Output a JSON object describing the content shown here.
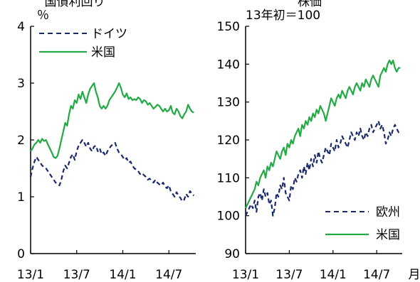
{
  "chart_data": [
    {
      "type": "line",
      "title": "国債利回り",
      "unit": "％",
      "ylim": [
        0,
        4
      ],
      "yticks": [
        "0",
        "1",
        "2",
        "3",
        "4"
      ],
      "xticks": [
        "13/1",
        "13/7",
        "14/1",
        "14/7"
      ],
      "xlim": [
        0,
        21.5
      ],
      "grid": false,
      "legend_position": "top-left",
      "series": [
        {
          "name": "ドイツ",
          "color": "#1b2a6b",
          "style": "dashed",
          "x": [
            0,
            0.25,
            0.5,
            0.75,
            1,
            1.25,
            1.5,
            1.75,
            2,
            2.25,
            2.5,
            2.75,
            3,
            3.25,
            3.5,
            3.75,
            4,
            4.25,
            4.5,
            4.75,
            5,
            5.25,
            5.5,
            5.75,
            6,
            6.25,
            6.5,
            6.75,
            7,
            7.25,
            7.5,
            7.75,
            8,
            8.25,
            8.5,
            8.75,
            9,
            9.25,
            9.5,
            9.75,
            10,
            10.25,
            10.5,
            10.75,
            11,
            11.25,
            11.5,
            11.75,
            12,
            12.25,
            12.5,
            12.75,
            13,
            13.25,
            13.5,
            13.75,
            14,
            14.25,
            14.5,
            14.75,
            15,
            15.25,
            15.5,
            15.75,
            16,
            16.25,
            16.5,
            16.75,
            17,
            17.25,
            17.5,
            17.75,
            18,
            18.25,
            18.5,
            18.75,
            19,
            19.25,
            19.5,
            19.75,
            20,
            20.25,
            20.5,
            20.75,
            21,
            21.25
          ],
          "values": [
            1.35,
            1.5,
            1.62,
            1.7,
            1.65,
            1.6,
            1.55,
            1.52,
            1.5,
            1.45,
            1.4,
            1.35,
            1.3,
            1.25,
            1.22,
            1.2,
            1.3,
            1.45,
            1.55,
            1.5,
            1.6,
            1.7,
            1.75,
            1.65,
            1.8,
            1.9,
            1.95,
            2.0,
            1.95,
            1.88,
            1.95,
            1.85,
            1.8,
            1.88,
            1.9,
            1.8,
            1.85,
            1.75,
            1.78,
            1.72,
            1.8,
            1.85,
            1.9,
            1.92,
            1.95,
            1.85,
            1.78,
            1.75,
            1.7,
            1.65,
            1.68,
            1.6,
            1.62,
            1.55,
            1.5,
            1.48,
            1.45,
            1.4,
            1.42,
            1.38,
            1.35,
            1.3,
            1.32,
            1.28,
            1.25,
            1.3,
            1.25,
            1.22,
            1.2,
            1.25,
            1.18,
            1.15,
            1.2,
            1.1,
            1.05,
            1.0,
            1.08,
            1.02,
            0.98,
            0.92,
            0.95,
            1.05,
            1.0,
            1.1,
            1.05,
            1.02
          ]
        },
        {
          "name": "米国",
          "color": "#22aa44",
          "style": "solid",
          "x": [
            0,
            0.25,
            0.5,
            0.75,
            1,
            1.25,
            1.5,
            1.75,
            2,
            2.25,
            2.5,
            2.75,
            3,
            3.25,
            3.5,
            3.75,
            4,
            4.25,
            4.5,
            4.75,
            5,
            5.25,
            5.5,
            5.75,
            6,
            6.25,
            6.5,
            6.75,
            7,
            7.25,
            7.5,
            7.75,
            8,
            8.25,
            8.5,
            8.75,
            9,
            9.25,
            9.5,
            9.75,
            10,
            10.25,
            10.5,
            10.75,
            11,
            11.25,
            11.5,
            11.75,
            12,
            12.25,
            12.5,
            12.75,
            13,
            13.25,
            13.5,
            13.75,
            14,
            14.25,
            14.5,
            14.75,
            15,
            15.25,
            15.5,
            15.75,
            16,
            16.25,
            16.5,
            16.75,
            17,
            17.25,
            17.5,
            17.75,
            18,
            18.25,
            18.5,
            18.75,
            19,
            19.25,
            19.5,
            19.75,
            20,
            20.25,
            20.5,
            20.75,
            21,
            21.25
          ],
          "values": [
            1.8,
            1.85,
            1.92,
            1.95,
            2.0,
            1.95,
            2.02,
            1.98,
            2.0,
            1.92,
            1.85,
            1.78,
            1.7,
            1.68,
            1.72,
            1.85,
            2.0,
            2.15,
            2.3,
            2.25,
            2.45,
            2.6,
            2.55,
            2.7,
            2.65,
            2.8,
            2.72,
            2.85,
            2.75,
            2.65,
            2.8,
            2.9,
            2.95,
            3.0,
            2.85,
            2.75,
            2.6,
            2.55,
            2.6,
            2.55,
            2.6,
            2.7,
            2.75,
            2.8,
            2.85,
            2.92,
            3.0,
            2.92,
            2.8,
            2.75,
            2.82,
            2.72,
            2.75,
            2.7,
            2.72,
            2.7,
            2.75,
            2.72,
            2.65,
            2.7,
            2.68,
            2.62,
            2.65,
            2.6,
            2.55,
            2.58,
            2.62,
            2.6,
            2.55,
            2.5,
            2.55,
            2.5,
            2.52,
            2.6,
            2.48,
            2.45,
            2.55,
            2.5,
            2.42,
            2.38,
            2.45,
            2.5,
            2.62,
            2.55,
            2.5,
            2.48
          ]
        }
      ]
    },
    {
      "type": "line",
      "title": "株価",
      "unit": "13年初＝100",
      "ylim": [
        90,
        150
      ],
      "yticks": [
        "90",
        "100",
        "110",
        "120",
        "130",
        "140",
        "150"
      ],
      "xticks": [
        "13/1",
        "13/7",
        "14/1",
        "14/7"
      ],
      "xlim": [
        0,
        21.5
      ],
      "x_axis_label": "月",
      "grid": false,
      "legend_position": "bottom-right",
      "series": [
        {
          "name": "欧州",
          "color": "#1b2a6b",
          "style": "dashed",
          "x": [
            0,
            0.25,
            0.5,
            0.75,
            1,
            1.25,
            1.5,
            1.75,
            2,
            2.25,
            2.5,
            2.75,
            3,
            3.25,
            3.5,
            3.75,
            4,
            4.25,
            4.5,
            4.75,
            5,
            5.25,
            5.5,
            5.75,
            6,
            6.25,
            6.5,
            6.75,
            7,
            7.25,
            7.5,
            7.75,
            8,
            8.25,
            8.5,
            8.75,
            9,
            9.25,
            9.5,
            9.75,
            10,
            10.25,
            10.5,
            10.75,
            11,
            11.25,
            11.5,
            11.75,
            12,
            12.25,
            12.5,
            12.75,
            13,
            13.25,
            13.5,
            13.75,
            14,
            14.25,
            14.5,
            14.75,
            15,
            15.25,
            15.5,
            15.75,
            16,
            16.25,
            16.5,
            16.75,
            17,
            17.25,
            17.5,
            17.75,
            18,
            18.25,
            18.5,
            18.75,
            19,
            19.25,
            19.5,
            19.75,
            20,
            20.25,
            20.5,
            20.75,
            21,
            21.25
          ],
          "values": [
            100,
            101,
            102,
            103,
            102,
            104,
            101,
            105,
            106,
            104,
            107,
            105,
            106,
            103,
            104,
            100,
            102,
            106,
            105,
            108,
            107,
            110,
            106,
            105,
            104,
            108,
            107,
            110,
            109,
            111,
            112,
            110,
            113,
            111,
            114,
            112,
            115,
            113,
            116,
            114,
            117,
            115,
            114,
            116,
            118,
            117,
            116,
            119,
            118,
            117,
            120,
            118,
            119,
            121,
            120,
            119,
            118,
            120,
            122,
            121,
            120,
            122,
            121,
            123,
            121,
            120,
            122,
            121,
            123,
            124,
            122,
            123,
            124,
            125,
            123,
            124,
            122,
            119,
            120,
            122,
            121,
            123,
            124,
            123,
            122,
            122
          ]
        },
        {
          "name": "米国",
          "color": "#22aa44",
          "style": "solid",
          "x": [
            0,
            0.25,
            0.5,
            0.75,
            1,
            1.25,
            1.5,
            1.75,
            2,
            2.25,
            2.5,
            2.75,
            3,
            3.25,
            3.5,
            3.75,
            4,
            4.25,
            4.5,
            4.75,
            5,
            5.25,
            5.5,
            5.75,
            6,
            6.25,
            6.5,
            6.75,
            7,
            7.25,
            7.5,
            7.75,
            8,
            8.25,
            8.5,
            8.75,
            9,
            9.25,
            9.5,
            9.75,
            10,
            10.25,
            10.5,
            10.75,
            11,
            11.25,
            11.5,
            11.75,
            12,
            12.25,
            12.5,
            12.75,
            13,
            13.25,
            13.5,
            13.75,
            14,
            14.25,
            14.5,
            14.75,
            15,
            15.25,
            15.5,
            15.75,
            16,
            16.25,
            16.5,
            16.75,
            17,
            17.25,
            17.5,
            17.75,
            18,
            18.25,
            18.5,
            18.75,
            19,
            19.25,
            19.5,
            19.75,
            20,
            20.25,
            20.5,
            20.75,
            21,
            21.25
          ],
          "values": [
            102,
            103,
            104,
            105,
            106,
            107,
            109,
            108,
            110,
            111,
            112,
            110,
            113,
            112,
            114,
            113,
            115,
            117,
            116,
            115,
            117,
            118,
            116,
            119,
            118,
            120,
            119,
            121,
            122,
            123,
            121,
            124,
            123,
            125,
            124,
            126,
            125,
            127,
            126,
            128,
            127,
            129,
            128,
            127,
            125,
            127,
            129,
            131,
            130,
            129,
            131,
            132,
            131,
            133,
            132,
            131,
            133,
            134,
            133,
            132,
            134,
            135,
            134,
            133,
            135,
            134,
            136,
            135,
            134,
            136,
            137,
            136,
            135,
            134,
            137,
            138,
            139,
            138,
            140,
            141,
            140,
            141,
            139,
            138,
            139,
            139
          ]
        }
      ]
    }
  ]
}
